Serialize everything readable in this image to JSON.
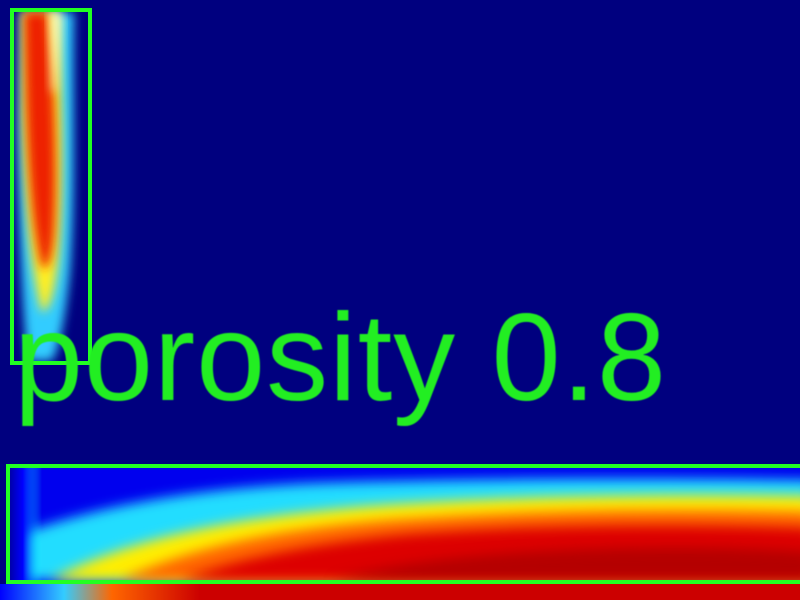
{
  "caption": {
    "text": "porosity  0.8"
  },
  "colors": {
    "background": "#00007f",
    "frame": "#22ff22",
    "caption": "#22ee22",
    "colormap": [
      "#00007f",
      "#0000ff",
      "#00ffff",
      "#ffff00",
      "#ff0000",
      "#7f0000"
    ]
  }
}
